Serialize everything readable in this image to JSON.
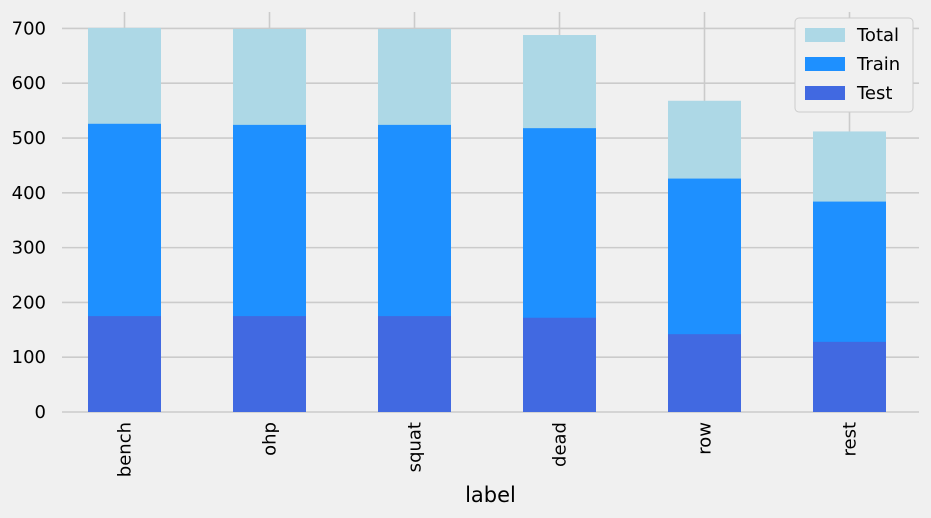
{
  "chart_data": {
    "type": "bar",
    "stacked": false,
    "note_overlay": "bars drawn overlapping (Total behind Train behind Test)",
    "categories": [
      "bench",
      "ohp",
      "squat",
      "dead",
      "row",
      "rest"
    ],
    "series": [
      {
        "name": "Total",
        "color": "#add8e6",
        "values": [
          701,
          699,
          699,
          688,
          568,
          512
        ]
      },
      {
        "name": "Train",
        "color": "#1e90ff",
        "values": [
          526,
          524,
          524,
          518,
          426,
          384
        ]
      },
      {
        "name": "Test",
        "color": "#4169e1",
        "values": [
          175,
          175,
          175,
          172,
          142,
          128
        ]
      }
    ],
    "xlabel": "label",
    "ylabel": "",
    "title": "",
    "ylim": [
      0,
      730
    ],
    "yticks": [
      0,
      100,
      200,
      300,
      400,
      500,
      600,
      700
    ],
    "grid": true,
    "legend_position": "top-right",
    "background": "#f0f0f0",
    "grid_color": "#cbcbcb"
  }
}
